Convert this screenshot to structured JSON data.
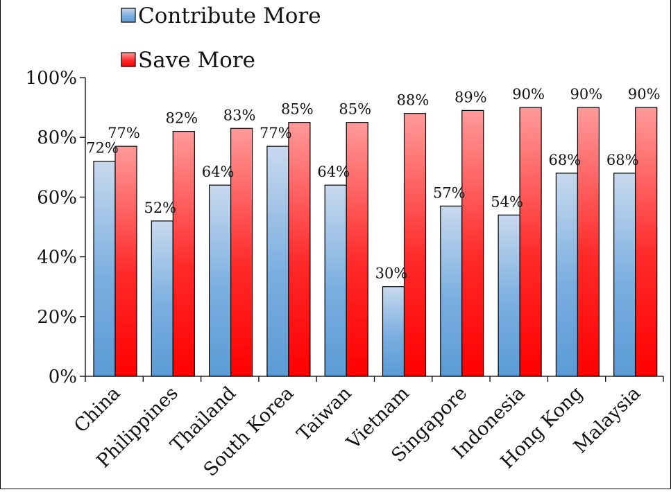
{
  "chart_data": {
    "type": "bar",
    "title": "",
    "xlabel": "",
    "ylabel": "",
    "ylim": [
      0,
      100
    ],
    "y_ticks": [
      "0%",
      "20%",
      "40%",
      "60%",
      "80%",
      "100%"
    ],
    "y_tick_values": [
      0,
      20,
      40,
      60,
      80,
      100
    ],
    "grid": false,
    "legend_position": "top-left",
    "categories": [
      "China",
      "Philippines",
      "Thailand",
      "South Korea",
      "Taiwan",
      "Vietnam",
      "Singapore",
      "Indonesia",
      "Hong Kong",
      "Malaysia"
    ],
    "series": [
      {
        "name": "Contribute More",
        "color": "#5b9bd5",
        "values": [
          72,
          52,
          64,
          77,
          64,
          30,
          57,
          54,
          68,
          68
        ],
        "labels": [
          "72%",
          "52%",
          "64%",
          "77%",
          "64%",
          "30%",
          "57%",
          "54%",
          "68%",
          "68%"
        ]
      },
      {
        "name": "Save More",
        "color": "#ff0000",
        "values": [
          77,
          82,
          83,
          85,
          85,
          88,
          89,
          90,
          90,
          90
        ],
        "labels": [
          "77%",
          "82%",
          "83%",
          "85%",
          "85%",
          "88%",
          "89%",
          "90%",
          "90%",
          "90%"
        ]
      }
    ]
  }
}
